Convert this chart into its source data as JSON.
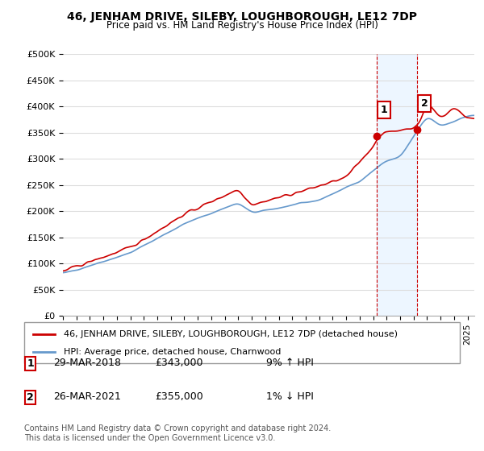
{
  "title": "46, JENHAM DRIVE, SILEBY, LOUGHBOROUGH, LE12 7DP",
  "subtitle": "Price paid vs. HM Land Registry's House Price Index (HPI)",
  "ylabel_ticks": [
    "£0",
    "£50K",
    "£100K",
    "£150K",
    "£200K",
    "£250K",
    "£300K",
    "£350K",
    "£400K",
    "£450K",
    "£500K"
  ],
  "ytick_values": [
    0,
    50000,
    100000,
    150000,
    200000,
    250000,
    300000,
    350000,
    400000,
    450000,
    500000
  ],
  "ylim": [
    0,
    500000
  ],
  "xlim_start": 1995.0,
  "xlim_end": 2025.5,
  "hpi_color": "#6699cc",
  "price_color": "#cc0000",
  "dashed_line_color": "#cc0000",
  "marker1_year": 2018.24,
  "marker1_price": 343000,
  "marker2_year": 2021.24,
  "marker2_price": 355000,
  "annotation1_label": "1",
  "annotation2_label": "2",
  "legend_label1": "46, JENHAM DRIVE, SILEBY, LOUGHBOROUGH, LE12 7DP (detached house)",
  "legend_label2": "HPI: Average price, detached house, Charnwood",
  "table_row1": [
    "1",
    "29-MAR-2018",
    "£343,000",
    "9% ↑ HPI"
  ],
  "table_row2": [
    "2",
    "26-MAR-2021",
    "£355,000",
    "1% ↓ HPI"
  ],
  "footnote": "Contains HM Land Registry data © Crown copyright and database right 2024.\nThis data is licensed under the Open Government Licence v3.0.",
  "background_color": "#ffffff",
  "plot_bg_color": "#ffffff",
  "grid_color": "#dddddd",
  "shaded_region_color": "#ddeeff",
  "shaded_alpha": 0.5
}
